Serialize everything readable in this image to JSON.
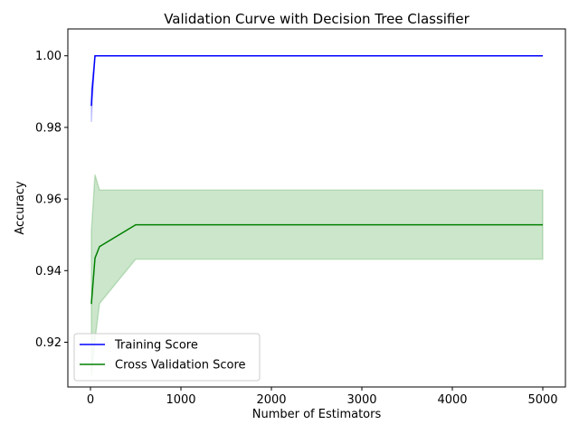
{
  "chart_data": {
    "type": "line",
    "title": "Validation Curve with Decision Tree Classifier",
    "xlabel": "Number of Estimators",
    "ylabel": "Accuracy",
    "xlim": [
      -250,
      5250
    ],
    "ylim": [
      0.9075,
      1.0075
    ],
    "xticks": [
      0,
      1000,
      2000,
      3000,
      4000,
      5000
    ],
    "xtick_labels": [
      "0",
      "1000",
      "2000",
      "3000",
      "4000",
      "5000"
    ],
    "yticks": [
      0.92,
      0.94,
      0.96,
      0.98,
      1.0
    ],
    "ytick_labels": [
      "0.92",
      "0.94",
      "0.96",
      "0.98",
      "1.00"
    ],
    "grid": false,
    "legend_position": "lower-left",
    "series": [
      {
        "name": "Training Score",
        "color": "#0000ff",
        "band_color": "#0000ff",
        "x": [
          10,
          20,
          50,
          100,
          200,
          500,
          1000,
          5000
        ],
        "y": [
          0.986,
          0.9905,
          1.0,
          1.0,
          1.0,
          1.0,
          1.0,
          1.0
        ],
        "lower": [
          0.9815,
          0.988,
          1.0,
          1.0,
          1.0,
          1.0,
          1.0,
          1.0
        ],
        "upper": [
          0.9905,
          0.993,
          1.0,
          1.0,
          1.0,
          1.0,
          1.0,
          1.0
        ]
      },
      {
        "name": "Cross Validation Score",
        "color": "#008000",
        "band_color": "#008000",
        "x": [
          10,
          50,
          100,
          500,
          1000,
          5000
        ],
        "y": [
          0.9307,
          0.9435,
          0.9467,
          0.9528,
          0.9528,
          0.9528
        ],
        "lower": [
          0.9105,
          0.9205,
          0.9308,
          0.9432,
          0.9432,
          0.9432
        ],
        "upper": [
          0.951,
          0.9668,
          0.9625,
          0.9625,
          0.9625,
          0.9625
        ]
      }
    ]
  }
}
